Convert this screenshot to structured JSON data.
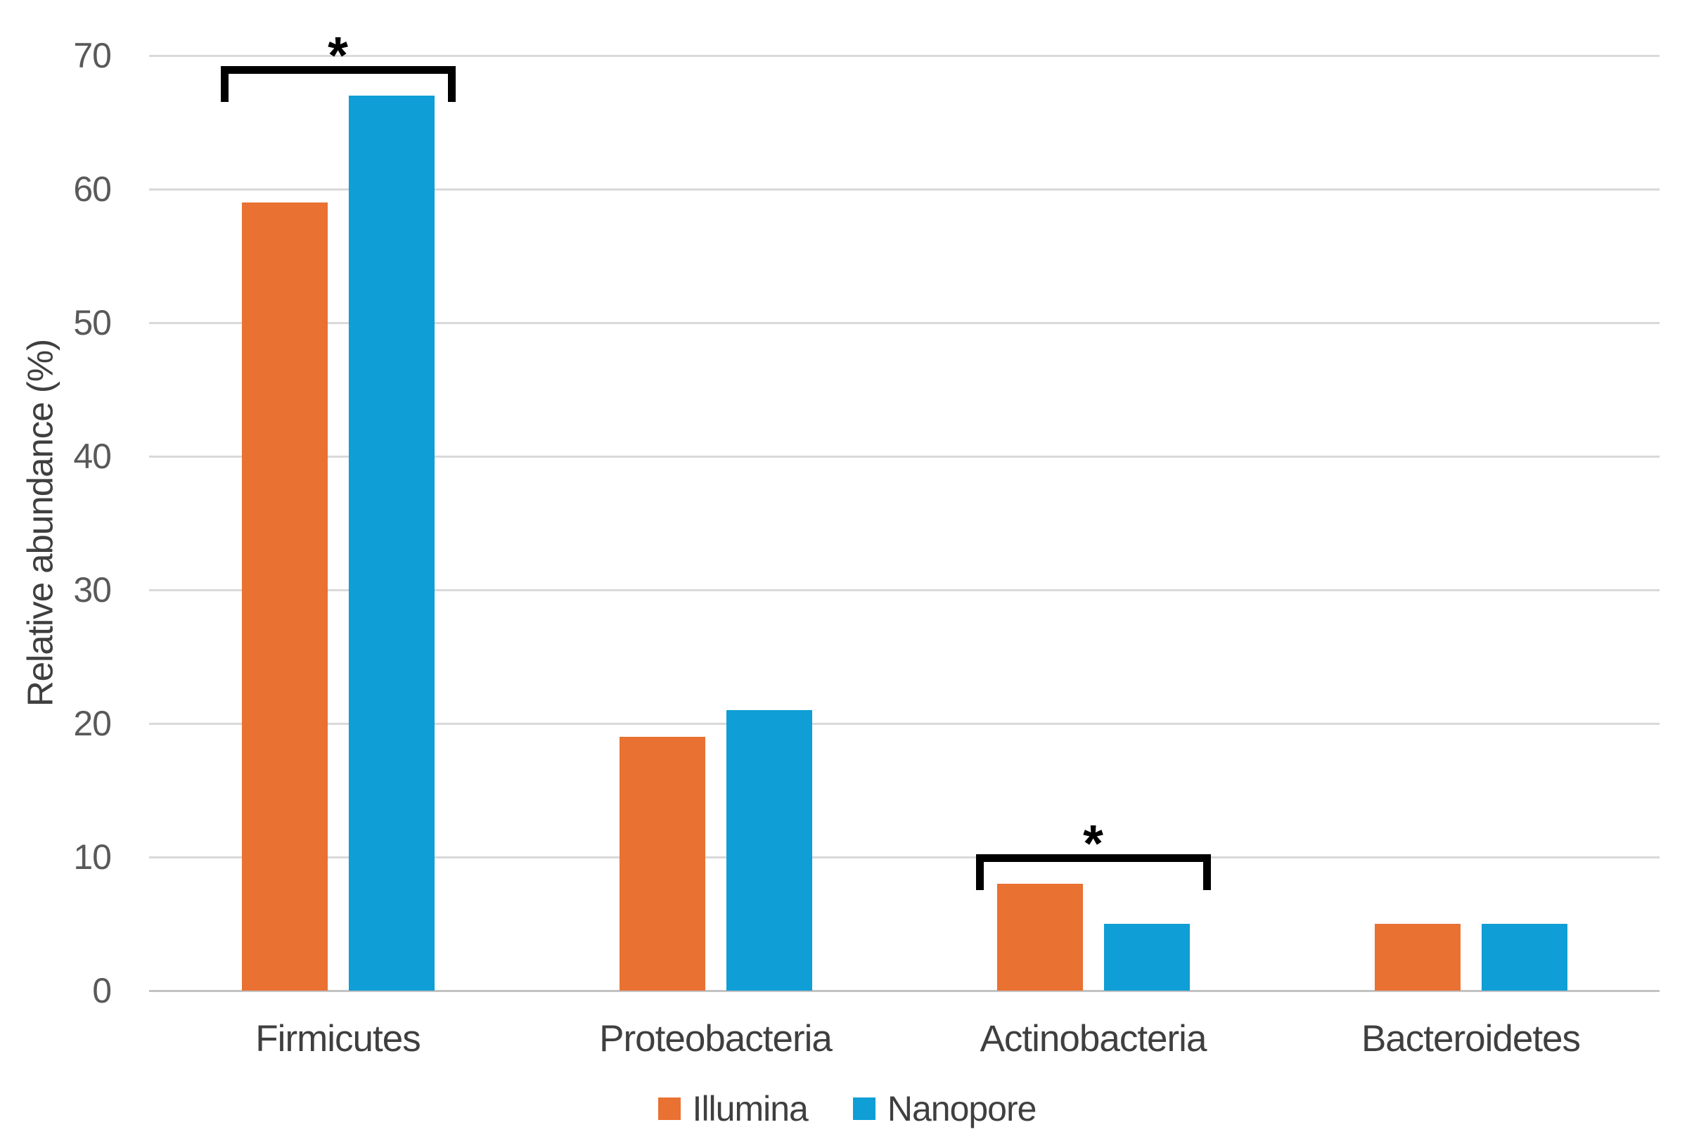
{
  "chart_data": {
    "type": "bar",
    "title": "",
    "categories": [
      "Firmicutes",
      "Proteobacteria",
      "Actinobacteria",
      "Bacteroidetes"
    ],
    "series": [
      {
        "name": "Illumina",
        "color": "#E97132",
        "values": [
          59,
          19,
          8,
          5
        ]
      },
      {
        "name": "Nanopore",
        "color": "#0F9ED5",
        "values": [
          67,
          21,
          5,
          5
        ]
      }
    ],
    "xlabel": "",
    "ylabel": "Relative abundance (%)",
    "ylim": [
      0,
      70
    ],
    "yticks": [
      0,
      10,
      20,
      30,
      40,
      50,
      60,
      70
    ],
    "grid": "horizontal",
    "legend_position": "bottom-center",
    "annotations": [
      {
        "type": "significance-bracket",
        "category": "Firmicutes",
        "label": "*"
      },
      {
        "type": "significance-bracket",
        "category": "Actinobacteria",
        "label": "*"
      }
    ]
  },
  "colors": {
    "gridline": "#D9D9D9",
    "axis_line": "#C2C2C2",
    "tick_text": "#595959",
    "label_text": "#3F3F3F",
    "annotation": "#000000",
    "background": "#FFFFFF"
  }
}
